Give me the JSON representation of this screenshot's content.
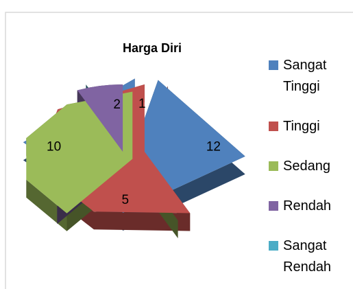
{
  "chart_data": {
    "type": "pie",
    "title": "Harga Diri",
    "categories": [
      "Sangat Tinggi",
      "Tinggi",
      "Sedang",
      "Rendah",
      "Sangat Rendah"
    ],
    "values": [
      1,
      12,
      5,
      10,
      2
    ],
    "colors": [
      "#4f81bd",
      "#c0504d",
      "#9bbb59",
      "#8064a2",
      "#4bacc6"
    ],
    "legend": "right"
  }
}
